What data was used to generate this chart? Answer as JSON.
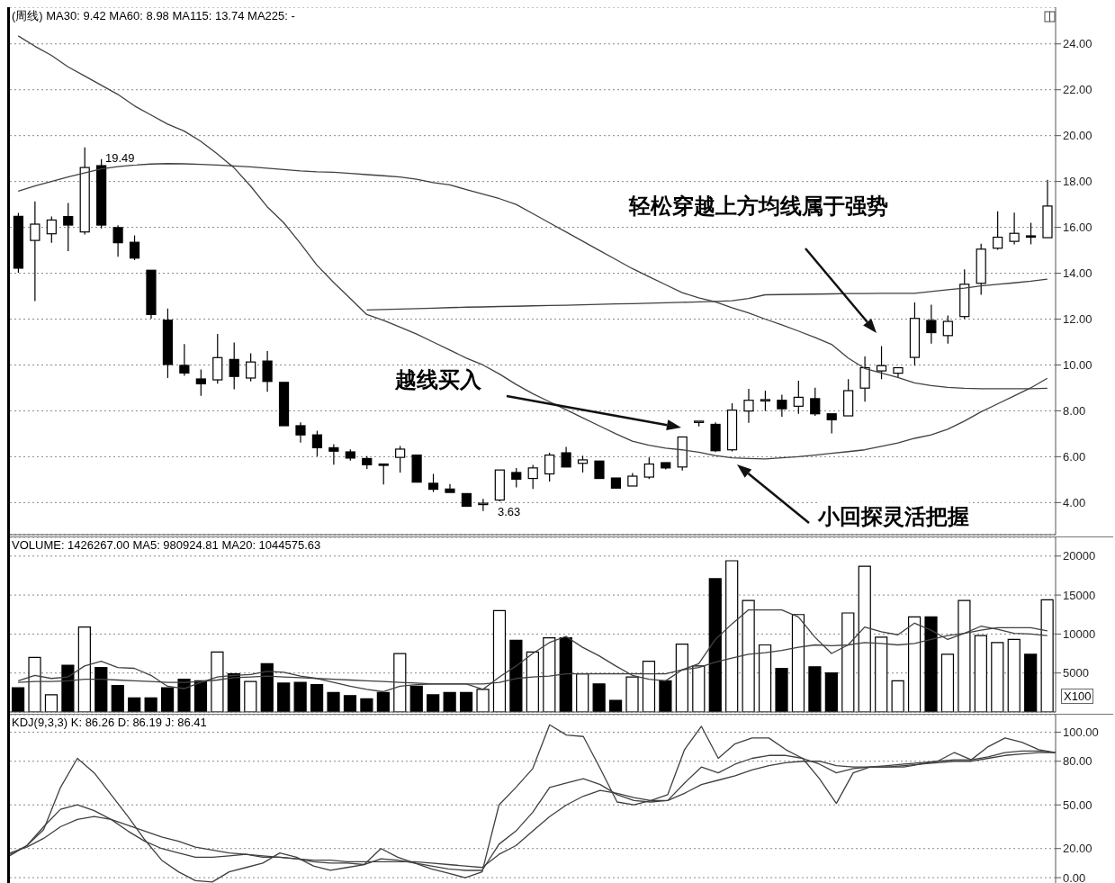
{
  "chart_data": [
    {
      "type": "candlestick",
      "title": "(周线) MA30: 9.42 MA60: 8.98 MA115: 13.74 MA225: -",
      "color": "#000000",
      "categories": [
        null,
        null,
        null,
        null,
        null,
        null,
        null,
        null,
        null,
        null,
        null,
        null,
        null,
        null,
        null,
        null,
        null,
        null,
        null,
        null,
        null,
        null,
        null,
        null,
        null,
        null,
        null,
        null,
        null,
        null,
        null,
        null,
        null,
        null,
        null,
        null,
        null,
        null,
        null,
        null,
        null,
        null,
        null,
        null,
        null,
        null,
        null,
        null,
        null,
        null,
        null,
        null,
        null,
        null,
        null,
        null,
        null,
        null,
        null,
        null,
        null,
        null,
        null
      ],
      "ohlc": [
        [
          16.48,
          16.63,
          14.02,
          14.22
        ],
        [
          15.43,
          17.13,
          12.79,
          16.14
        ],
        [
          15.72,
          16.47,
          15.33,
          16.32
        ],
        [
          16.47,
          17.06,
          14.96,
          16.1
        ],
        [
          15.8,
          19.49,
          15.69,
          18.61
        ],
        [
          18.69,
          18.98,
          15.95,
          16.1
        ],
        [
          15.99,
          16.09,
          14.72,
          15.33
        ],
        [
          15.35,
          15.65,
          14.57,
          14.66
        ],
        [
          14.13,
          14.13,
          12.02,
          12.2
        ],
        [
          11.95,
          12.46,
          9.43,
          10.02
        ],
        [
          9.98,
          10.91,
          9.53,
          9.65
        ],
        [
          9.39,
          9.8,
          8.65,
          9.18
        ],
        [
          9.35,
          11.35,
          9.18,
          10.32
        ],
        [
          10.24,
          10.98,
          8.94,
          9.5
        ],
        [
          9.43,
          10.51,
          9.28,
          10.13
        ],
        [
          10.17,
          10.61,
          8.83,
          9.28
        ],
        [
          9.24,
          9.24,
          7.35,
          7.35
        ],
        [
          7.35,
          7.5,
          6.61,
          6.95
        ],
        [
          6.95,
          7.13,
          6.02,
          6.39
        ],
        [
          6.39,
          6.54,
          5.65,
          6.24
        ],
        [
          6.21,
          6.32,
          5.83,
          5.94
        ],
        [
          5.92,
          6.02,
          5.47,
          5.65
        ],
        [
          5.68,
          5.7,
          4.79,
          5.65
        ],
        [
          5.97,
          6.47,
          5.31,
          6.33
        ],
        [
          6.07,
          6.1,
          4.85,
          4.89
        ],
        [
          4.84,
          5.25,
          4.46,
          4.58
        ],
        [
          4.59,
          4.81,
          4.44,
          4.44
        ],
        [
          4.39,
          4.39,
          3.8,
          3.84
        ],
        [
          3.95,
          4.16,
          3.63,
          3.97
        ],
        [
          4.11,
          5.45,
          4.05,
          5.42
        ],
        [
          5.31,
          5.5,
          4.66,
          5.02
        ],
        [
          5.05,
          5.64,
          4.59,
          5.51
        ],
        [
          5.25,
          6.17,
          4.92,
          6.07
        ],
        [
          6.17,
          6.43,
          5.5,
          5.55
        ],
        [
          5.71,
          6.04,
          5.31,
          5.86
        ],
        [
          5.81,
          5.85,
          5.0,
          5.05
        ],
        [
          5.07,
          5.07,
          4.6,
          4.63
        ],
        [
          4.72,
          5.29,
          4.7,
          5.15
        ],
        [
          5.11,
          5.97,
          5.02,
          5.68
        ],
        [
          5.74,
          5.78,
          5.45,
          5.51
        ],
        [
          5.55,
          6.9,
          5.4,
          6.86
        ],
        [
          7.5,
          7.58,
          7.32,
          7.55
        ],
        [
          7.41,
          7.5,
          6.2,
          6.26
        ],
        [
          6.3,
          8.33,
          6.23,
          8.03
        ],
        [
          7.99,
          8.96,
          7.48,
          8.46
        ],
        [
          8.46,
          8.88,
          7.99,
          8.49
        ],
        [
          8.46,
          8.7,
          7.74,
          8.09
        ],
        [
          8.2,
          9.31,
          7.87,
          8.59
        ],
        [
          8.53,
          9.01,
          7.78,
          7.87
        ],
        [
          7.87,
          7.91,
          7.02,
          7.61
        ],
        [
          7.78,
          9.38,
          7.74,
          8.88
        ],
        [
          8.99,
          10.37,
          8.4,
          9.88
        ],
        [
          9.74,
          10.82,
          9.38,
          9.97
        ],
        [
          9.64,
          9.9,
          9.44,
          9.88
        ],
        [
          10.33,
          12.73,
          9.97,
          12.03
        ],
        [
          11.94,
          12.63,
          10.93,
          11.41
        ],
        [
          11.28,
          12.16,
          10.93,
          11.9
        ],
        [
          12.11,
          14.17,
          12.01,
          13.52
        ],
        [
          13.56,
          15.29,
          13.06,
          15.05
        ],
        [
          15.09,
          16.7,
          15.02,
          15.57
        ],
        [
          15.39,
          16.64,
          15.26,
          15.74
        ],
        [
          15.63,
          16.2,
          15.26,
          15.61
        ],
        [
          15.55,
          18.07,
          15.55,
          16.93
        ]
      ],
      "series": [
        {
          "type": "line",
          "color": "#404040",
          "values": [
            24.35,
            23.9,
            23.5,
            23.0,
            22.6,
            22.2,
            21.8,
            21.3,
            20.9,
            20.5,
            20.2,
            19.75,
            19.2,
            18.6,
            17.8,
            16.9,
            16.2,
            15.3,
            14.35,
            13.6,
            12.9,
            12.2,
            11.95,
            11.65,
            11.35,
            11.0,
            10.65,
            10.3,
            10.0,
            9.6,
            9.15,
            8.75,
            8.4,
            8.05,
            7.7,
            7.35,
            7.0,
            6.68,
            6.5,
            6.37,
            6.3,
            6.2,
            6.05,
            5.95,
            5.92,
            5.9,
            5.95,
            6.0,
            6.07,
            6.15,
            6.22,
            6.3,
            6.45,
            6.6,
            6.8,
            6.95,
            7.2,
            7.55,
            7.95,
            8.3,
            8.65,
            9.0,
            9.42
          ]
        },
        {
          "type": "line",
          "color": "#404040",
          "values": [
            17.58,
            17.8,
            18.0,
            18.2,
            18.37,
            18.55,
            18.65,
            18.72,
            18.76,
            18.78,
            18.77,
            18.75,
            18.72,
            18.68,
            18.64,
            18.58,
            18.52,
            18.46,
            18.42,
            18.4,
            18.35,
            18.3,
            18.25,
            18.2,
            18.1,
            17.95,
            17.85,
            17.65,
            17.45,
            17.25,
            17.0,
            16.6,
            16.2,
            15.8,
            15.4,
            15.0,
            14.6,
            14.2,
            13.85,
            13.5,
            13.15,
            12.93,
            12.75,
            12.5,
            12.27,
            12.0,
            11.75,
            11.48,
            11.2,
            10.9,
            10.3,
            9.85,
            9.65,
            9.45,
            9.22,
            9.1,
            9.02,
            8.98,
            8.96,
            8.96,
            8.96,
            8.96,
            8.98
          ]
        },
        {
          "type": "line",
          "color": "#404040",
          "values": [
            null,
            null,
            null,
            null,
            null,
            null,
            null,
            null,
            null,
            null,
            null,
            null,
            null,
            null,
            null,
            null,
            null,
            null,
            null,
            null,
            null,
            12.4,
            12.42,
            12.44,
            12.46,
            12.48,
            12.5,
            12.52,
            12.53,
            12.55,
            12.56,
            12.58,
            12.59,
            12.6,
            12.62,
            12.64,
            12.66,
            12.67,
            12.69,
            12.71,
            12.73,
            12.75,
            12.77,
            12.8,
            12.9,
            13.06,
            13.07,
            13.08,
            13.09,
            13.1,
            13.11,
            13.11,
            13.12,
            13.12,
            13.12,
            13.2,
            13.28,
            13.35,
            13.45,
            13.52,
            13.58,
            13.65,
            13.74
          ]
        }
      ],
      "ylim": [
        2.6,
        25.6
      ],
      "yticks": [
        {
          "value": 4,
          "label": "4.00"
        },
        {
          "value": 6,
          "label": "6.00"
        },
        {
          "value": 8,
          "label": "8.00"
        },
        {
          "value": 10,
          "label": "10.00"
        },
        {
          "value": 12,
          "label": "12.00"
        },
        {
          "value": 14,
          "label": "14.00"
        },
        {
          "value": 16,
          "label": "16.00"
        },
        {
          "value": 18,
          "label": "18.00"
        },
        {
          "value": 20,
          "label": "20.00"
        },
        {
          "value": 22,
          "label": "22.00"
        },
        {
          "value": 24,
          "label": "24.00"
        }
      ],
      "grid": "y",
      "annotations": [
        "19.49",
        "3.63",
        "越线买入",
        "轻松穿越上方均线属于强势",
        "小回探灵活把握"
      ]
    },
    {
      "type": "bar",
      "title": "VOLUME: 1426267.00 MA5: 980924.81 MA20: 1044575.63",
      "categories": [
        null,
        null,
        null,
        null,
        null,
        null,
        null,
        null,
        null,
        null,
        null,
        null,
        null,
        null,
        null,
        null,
        null,
        null,
        null,
        null,
        null,
        null,
        null,
        null,
        null,
        null,
        null,
        null,
        null,
        null,
        null,
        null,
        null,
        null,
        null,
        null,
        null,
        null,
        null,
        null,
        null,
        null,
        null,
        null,
        null,
        null,
        null,
        null,
        null,
        null,
        null,
        null,
        null,
        null,
        null,
        null,
        null,
        null,
        null,
        null,
        null,
        null,
        null
      ],
      "series": [
        {
          "colors": [
            "#000000",
            "#ffffff",
            "#ffffff",
            "#000000",
            "#ffffff",
            "#000000",
            "#000000",
            "#000000",
            "#000000",
            "#000000",
            "#000000",
            "#000000",
            "#ffffff",
            "#000000",
            "#ffffff",
            "#000000",
            "#000000",
            "#000000",
            "#000000",
            "#000000",
            "#000000",
            "#000000",
            "#000000",
            "#ffffff",
            "#000000",
            "#000000",
            "#000000",
            "#000000",
            "#ffffff",
            "#ffffff",
            "#000000",
            "#ffffff",
            "#ffffff",
            "#000000",
            "#ffffff",
            "#000000",
            "#000000",
            "#ffffff",
            "#ffffff",
            "#000000",
            "#ffffff",
            "#ffffff",
            "#000000",
            "#ffffff",
            "#ffffff",
            "#ffffff",
            "#000000",
            "#ffffff",
            "#000000",
            "#000000",
            "#ffffff",
            "#ffffff",
            "#ffffff",
            "#ffffff",
            "#ffffff",
            "#000000",
            "#ffffff",
            "#ffffff",
            "#ffffff",
            "#ffffff",
            "#ffffff",
            "#000000",
            "#ffffff"
          ],
          "values": [
            3100,
            7000,
            2200,
            6000,
            10900,
            5700,
            3400,
            1800,
            1800,
            3100,
            4200,
            4000,
            7700,
            4900,
            3900,
            6200,
            3700,
            3800,
            3500,
            2500,
            2100,
            1700,
            2500,
            7500,
            3300,
            2200,
            2500,
            2500,
            2900,
            13000,
            9200,
            7700,
            9500,
            9500,
            4900,
            3600,
            1500,
            4500,
            6500,
            4000,
            8700,
            5900,
            17100,
            19400,
            14300,
            8600,
            5600,
            12500,
            5800,
            5000,
            12700,
            18700,
            9600,
            4000,
            12200,
            12200,
            7400,
            14300,
            9800,
            8900,
            9300,
            7400,
            14400
          ]
        },
        {
          "type": "line",
          "color": "#404040",
          "values": [
            4000,
            4700,
            4300,
            4500,
            5900,
            6500,
            5700,
            5600,
            4700,
            3300,
            3000,
            3800,
            4500,
            4700,
            4800,
            5200,
            5100,
            4600,
            4300,
            3800,
            3300,
            2900,
            2600,
            3300,
            3500,
            3600,
            3600,
            3600,
            2900,
            4500,
            5900,
            7500,
            8900,
            9700,
            8300,
            7200,
            5900,
            4700,
            4200,
            4000,
            5400,
            6200,
            9300,
            11300,
            13100,
            13100,
            13100,
            12200,
            9600,
            7500,
            8600,
            10900,
            10300,
            9900,
            11400,
            10500,
            9300,
            10100,
            11000,
            10600,
            10100,
            10000,
            9800
          ]
        },
        {
          "type": "line",
          "color": "#404040",
          "values": [
            3800,
            3900,
            3900,
            4000,
            4200,
            4200,
            4100,
            4000,
            3900,
            3800,
            3800,
            3900,
            4100,
            4400,
            4500,
            4600,
            4500,
            4400,
            4300,
            4200,
            4100,
            4000,
            3900,
            3800,
            3700,
            3600,
            3600,
            3600,
            3600,
            3800,
            4300,
            4500,
            4600,
            4900,
            4900,
            4900,
            4900,
            4900,
            4900,
            4900,
            5400,
            5700,
            6400,
            6900,
            7400,
            7600,
            7900,
            8300,
            8600,
            8500,
            8600,
            8900,
            8800,
            8600,
            8800,
            9300,
            9800,
            10100,
            10500,
            10800,
            10800,
            10800,
            10400
          ]
        }
      ],
      "ylim": [
        0,
        22400
      ],
      "yticks": [
        5000,
        10000,
        15000,
        20000
      ],
      "grid": "y",
      "annotations": [
        "X100"
      ]
    },
    {
      "type": "line",
      "title": "KDJ(9,3,3) K: 86.26 D: 86.19 J: 86.41",
      "categories": [
        null,
        null,
        null,
        null,
        null,
        null,
        null,
        null,
        null,
        null,
        null,
        null,
        null,
        null,
        null,
        null,
        null,
        null,
        null,
        null,
        null,
        null,
        null,
        null,
        null,
        null,
        null,
        null,
        null,
        null,
        null,
        null,
        null,
        null,
        null,
        null,
        null,
        null,
        null,
        null,
        null,
        null,
        null,
        null,
        null,
        null,
        null,
        null,
        null,
        null,
        null,
        null,
        null,
        null,
        null,
        null,
        null,
        null,
        null,
        null,
        null,
        null,
        null
      ],
      "series": [
        {
          "color": "#404040",
          "values": [
            16,
            22,
            35,
            47,
            50,
            46,
            40,
            32,
            25,
            20,
            17,
            14,
            14,
            15,
            16,
            14,
            14,
            13,
            11,
            10,
            10,
            9,
            13,
            12,
            10,
            8,
            6,
            5,
            5,
            23,
            32,
            45,
            62,
            65,
            68,
            64,
            57,
            53,
            52,
            53,
            65,
            76,
            72,
            78,
            82,
            84,
            84,
            82,
            78,
            72,
            75,
            76,
            77,
            78,
            79,
            80,
            81,
            81,
            83,
            86,
            87,
            87,
            86
          ]
        },
        {
          "color": "#404040",
          "values": [
            17,
            21,
            27,
            35,
            40,
            42,
            40,
            36,
            32,
            28,
            25,
            21,
            19,
            17,
            16,
            15,
            14,
            13,
            12,
            12,
            11,
            11,
            11,
            11,
            11,
            10,
            9,
            8,
            7,
            16,
            22,
            32,
            42,
            50,
            56,
            60,
            58,
            55,
            53,
            53,
            58,
            64,
            67,
            70,
            74,
            77,
            79,
            80,
            80,
            77,
            76,
            76,
            76,
            77,
            78,
            79,
            80,
            80,
            82,
            84,
            85,
            86,
            86
          ]
        },
        {
          "color": "#404040",
          "values": [
            15,
            22,
            33,
            62,
            82,
            72,
            57,
            42,
            26,
            12,
            4,
            -2,
            -3,
            4,
            7,
            10,
            17,
            14,
            8,
            5,
            7,
            9,
            20,
            14,
            10,
            6,
            3,
            0,
            4,
            50,
            62,
            75,
            105,
            98,
            97,
            75,
            52,
            50,
            53,
            57,
            88,
            104,
            82,
            92,
            96,
            96,
            88,
            82,
            68,
            51,
            72,
            76,
            76,
            76,
            78,
            80,
            86,
            81,
            90,
            96,
            93,
            88,
            86
          ]
        }
      ],
      "ylim": [
        -8,
        112
      ],
      "yticks": [
        {
          "value": 0,
          "label": "0.00"
        },
        {
          "value": 20,
          "label": "20.00"
        },
        {
          "value": 50,
          "label": "50.00"
        },
        {
          "value": 80,
          "label": "80.00"
        },
        {
          "value": 100,
          "label": "100.00"
        }
      ],
      "grid": "y"
    }
  ]
}
